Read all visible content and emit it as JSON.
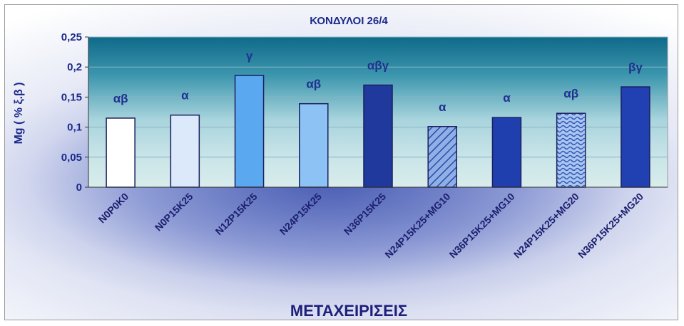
{
  "chart_data": {
    "type": "bar",
    "title": "ΚΟΝΔΥΛΟΙ 26/4",
    "ylabel": "Mg ( % ξ.β )",
    "xlabel": "ΜΕΤΑΧΕΙΡΙΣΕΙΣ",
    "ylim": [
      0,
      0.25
    ],
    "yticks": [
      "0",
      "0,05",
      "0,1",
      "0,15",
      "0,2",
      "0,25"
    ],
    "yticks_values": [
      0,
      0.05,
      0.1,
      0.15,
      0.2,
      0.25
    ],
    "categories": [
      "N0P0K0",
      "N0P15K25",
      "N12P15K25",
      "N24P15K25",
      "N36P15K25",
      "N24P15K25+MG10",
      "N36P15K25+MG10",
      "N24P15K25+MG20",
      "N36P15K25+MG20"
    ],
    "values": [
      0.115,
      0.12,
      0.186,
      0.139,
      0.17,
      0.101,
      0.116,
      0.123,
      0.167
    ],
    "significance_labels": [
      "αβ",
      "α",
      "γ",
      "αβ",
      "αβγ",
      "α",
      "α",
      "αβ",
      "βγ"
    ],
    "bar_fills": [
      "#ffffff",
      "#dce9fb",
      "#5aa8f0",
      "#8cc2f4",
      "#1f3a9c",
      "hatch",
      "#1f3fae",
      "wave",
      "#2141b3"
    ],
    "grid": true
  }
}
